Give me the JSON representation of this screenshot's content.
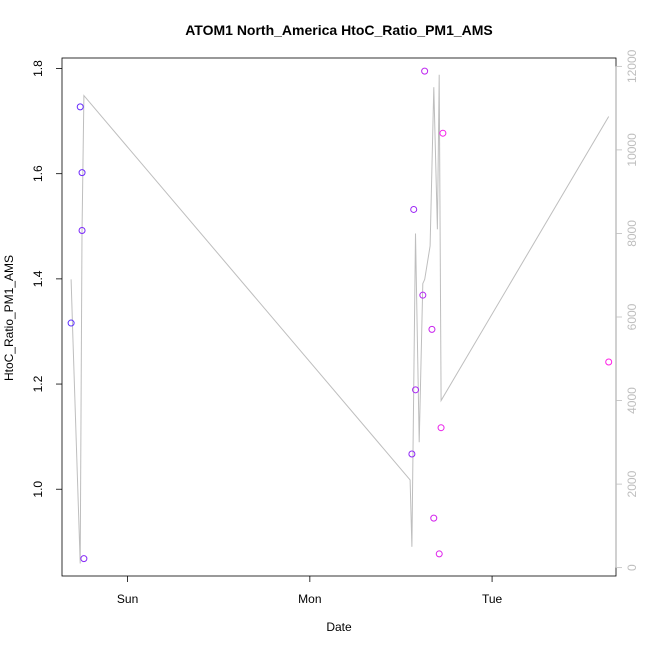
{
  "chart_data": {
    "type": "scatter",
    "title": "ATOM1 North_America HtoC_Ratio_PM1_AMS",
    "xlabel": "Date",
    "ylabel": "HtoC_Ratio_PM1_AMS",
    "x_unit": "days",
    "x_ticks": [
      {
        "label": "Sun",
        "value": 1
      },
      {
        "label": "Mon",
        "value": 2
      },
      {
        "label": "Tue",
        "value": 3
      }
    ],
    "xlim": [
      0.64,
      3.68
    ],
    "ylim": [
      0.835,
      1.82
    ],
    "y_ticks": [
      1.0,
      1.2,
      1.4,
      1.6,
      1.8
    ],
    "y2lim": [
      -200,
      12200
    ],
    "y2_ticks": [
      0,
      2000,
      4000,
      6000,
      8000,
      10000,
      12000
    ],
    "grid": false,
    "series": [
      {
        "kind": "points",
        "axis": "left",
        "color_start": "#5a2bff",
        "color_end": "#ff1ee6",
        "points": [
          {
            "x": 0.69,
            "y": 1.316
          },
          {
            "x": 0.74,
            "y": 1.727
          },
          {
            "x": 0.75,
            "y": 1.602
          },
          {
            "x": 0.75,
            "y": 1.492
          },
          {
            "x": 0.76,
            "y": 0.868
          },
          {
            "x": 2.56,
            "y": 1.067
          },
          {
            "x": 2.57,
            "y": 1.532
          },
          {
            "x": 2.58,
            "y": 1.189
          },
          {
            "x": 2.62,
            "y": 1.369
          },
          {
            "x": 2.63,
            "y": 1.795
          },
          {
            "x": 2.67,
            "y": 1.304
          },
          {
            "x": 2.68,
            "y": 0.945
          },
          {
            "x": 2.71,
            "y": 0.877
          },
          {
            "x": 2.72,
            "y": 1.117
          },
          {
            "x": 2.73,
            "y": 1.677
          },
          {
            "x": 3.64,
            "y": 1.242
          }
        ]
      },
      {
        "kind": "line",
        "axis": "right",
        "color": "#bebebe",
        "points": [
          {
            "x": 0.69,
            "y": 6900
          },
          {
            "x": 0.7,
            "y": 5500
          },
          {
            "x": 0.74,
            "y": 100
          },
          {
            "x": 0.75,
            "y": 8000
          },
          {
            "x": 0.76,
            "y": 11300
          },
          {
            "x": 2.55,
            "y": 2100
          },
          {
            "x": 2.56,
            "y": 500
          },
          {
            "x": 2.58,
            "y": 8000
          },
          {
            "x": 2.6,
            "y": 3000
          },
          {
            "x": 2.62,
            "y": 6800
          },
          {
            "x": 2.63,
            "y": 6900
          },
          {
            "x": 2.66,
            "y": 7700
          },
          {
            "x": 2.68,
            "y": 11500
          },
          {
            "x": 2.7,
            "y": 8100
          },
          {
            "x": 2.71,
            "y": 11800
          },
          {
            "x": 2.72,
            "y": 4000
          },
          {
            "x": 3.64,
            "y": 10800
          }
        ]
      }
    ]
  }
}
